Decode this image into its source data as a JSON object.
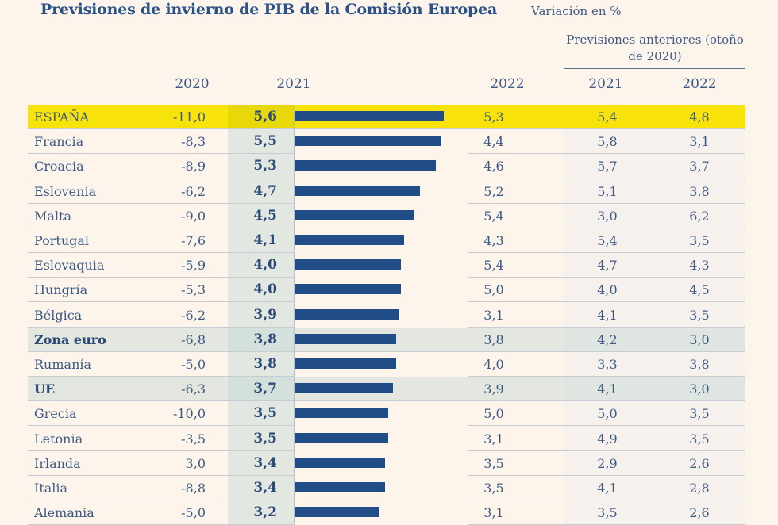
{
  "title": "Previsiones de invierno de PIB de la Comisión Europea",
  "subtitle": "Variación en %",
  "previous_header": "Previsiones anteriores (otoño de 2020)",
  "columns": {
    "c2020": "2020",
    "c2021": "2021",
    "c2022": "2022",
    "p2021": "2021",
    "p2022": "2022"
  },
  "colors": {
    "highlight": "#f7e20a",
    "bar": "#214d86",
    "aggregate_row": "#dfe5e0",
    "background": "#fdf4ec"
  },
  "chart_data": {
    "type": "table",
    "title": "Previsiones de invierno de PIB de la Comisión Europea",
    "subtitle": "Variación en %",
    "bar_column": "2021",
    "highlighted_row": "ESPAÑA",
    "aggregate_rows": [
      "Zona euro",
      "UE"
    ],
    "headers": [
      "",
      "2020",
      "2021",
      "2022",
      "Previsiones anteriores 2021",
      "Previsiones anteriores 2022"
    ],
    "rows": [
      {
        "name": "ESPAÑA",
        "y2020": "-11,0",
        "y2021": "5,6",
        "y2022": "5,3",
        "prev2021": "5,4",
        "prev2022": "4,8",
        "value2021": 5.6
      },
      {
        "name": "Francia",
        "y2020": "-8,3",
        "y2021": "5,5",
        "y2022": "4,4",
        "prev2021": "5,8",
        "prev2022": "3,1",
        "value2021": 5.5
      },
      {
        "name": "Croacia",
        "y2020": "-8,9",
        "y2021": "5,3",
        "y2022": "4,6",
        "prev2021": "5,7",
        "prev2022": "3,7",
        "value2021": 5.3
      },
      {
        "name": "Eslovenia",
        "y2020": "-6,2",
        "y2021": "4,7",
        "y2022": "5,2",
        "prev2021": "5,1",
        "prev2022": "3,8",
        "value2021": 4.7
      },
      {
        "name": "Malta",
        "y2020": "-9,0",
        "y2021": "4,5",
        "y2022": "5,4",
        "prev2021": "3,0",
        "prev2022": "6,2",
        "value2021": 4.5
      },
      {
        "name": "Portugal",
        "y2020": "-7,6",
        "y2021": "4,1",
        "y2022": "4,3",
        "prev2021": "5,4",
        "prev2022": "3,5",
        "value2021": 4.1
      },
      {
        "name": "Eslovaquia",
        "y2020": "-5,9",
        "y2021": "4,0",
        "y2022": "5,4",
        "prev2021": "4,7",
        "prev2022": "4,3",
        "value2021": 4.0
      },
      {
        "name": "Hungría",
        "y2020": "-5,3",
        "y2021": "4,0",
        "y2022": "5,0",
        "prev2021": "4,0",
        "prev2022": "4,5",
        "value2021": 4.0
      },
      {
        "name": "Bélgica",
        "y2020": "-6,2",
        "y2021": "3,9",
        "y2022": "3,1",
        "prev2021": "4,1",
        "prev2022": "3,5",
        "value2021": 3.9
      },
      {
        "name": "Zona euro",
        "y2020": "-6,8",
        "y2021": "3,8",
        "y2022": "3,8",
        "prev2021": "4,2",
        "prev2022": "3,0",
        "value2021": 3.8
      },
      {
        "name": "Rumanía",
        "y2020": "-5,0",
        "y2021": "3,8",
        "y2022": "4,0",
        "prev2021": "3,3",
        "prev2022": "3,8",
        "value2021": 3.8
      },
      {
        "name": "UE",
        "y2020": "-6,3",
        "y2021": "3,7",
        "y2022": "3,9",
        "prev2021": "4,1",
        "prev2022": "3,0",
        "value2021": 3.7
      },
      {
        "name": "Grecia",
        "y2020": "-10,0",
        "y2021": "3,5",
        "y2022": "5,0",
        "prev2021": "5,0",
        "prev2022": "3,5",
        "value2021": 3.5
      },
      {
        "name": "Letonia",
        "y2020": "-3,5",
        "y2021": "3,5",
        "y2022": "3,1",
        "prev2021": "4,9",
        "prev2022": "3,5",
        "value2021": 3.5
      },
      {
        "name": "Irlanda",
        "y2020": "3,0",
        "y2021": "3,4",
        "y2022": "3,5",
        "prev2021": "2,9",
        "prev2022": "2,6",
        "value2021": 3.4
      },
      {
        "name": "Italia",
        "y2020": "-8,8",
        "y2021": "3,4",
        "y2022": "3,5",
        "prev2021": "4,1",
        "prev2022": "2,8",
        "value2021": 3.4
      },
      {
        "name": "Alemania",
        "y2020": "-5,0",
        "y2021": "3,2",
        "y2022": "3,1",
        "prev2021": "3,5",
        "prev2022": "2,6",
        "value2021": 3.2
      }
    ],
    "bar_range": [
      0,
      5.6
    ]
  }
}
